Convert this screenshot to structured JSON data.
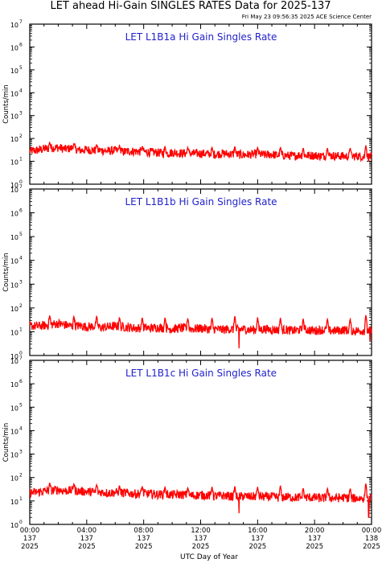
{
  "header": {
    "title": "LET ahead Hi-Gain SINGLES RATES Data for 2025-137",
    "timestamp": "Fri May 23 09:56:35 2025 ACE Science Center"
  },
  "colors": {
    "series": "#ff0000",
    "panel_title": "#2222cc",
    "frame": "#000000"
  },
  "chart_data": [
    {
      "type": "line",
      "title": "LET L1B1a Hi Gain Singles Rate",
      "ylabel": "Counts/min",
      "yscale": "log",
      "ylim": [
        1,
        10000000
      ],
      "y_ticks": [
        "10",
        "10",
        "10",
        "10",
        "10",
        "10",
        "10",
        "10"
      ],
      "y_tick_exponents": [
        "0",
        "1",
        "2",
        "3",
        "4",
        "5",
        "6",
        "7"
      ],
      "xlim": [
        0,
        24
      ],
      "x_unit": "hours UTC, day 137 of 2025",
      "series": [
        {
          "color": "#ff0000",
          "x": [
            0,
            0.5,
            1,
            1.5,
            2,
            2.5,
            3,
            3.5,
            4,
            4.5,
            5,
            5.5,
            6,
            6.5,
            7,
            7.5,
            8,
            8.5,
            9,
            9.5,
            10,
            10.5,
            11,
            11.5,
            12,
            12.5,
            13,
            13.5,
            14,
            14.5,
            15,
            15.5,
            16,
            16.5,
            17,
            17.5,
            18,
            18.5,
            19,
            19.5,
            20,
            20.5,
            21,
            21.5,
            22,
            22.5,
            23,
            23.5,
            24
          ],
          "y": [
            28,
            30,
            35,
            38,
            40,
            34,
            38,
            30,
            32,
            30,
            30,
            28,
            30,
            26,
            28,
            27,
            26,
            25,
            24,
            22,
            24,
            23,
            22,
            22,
            22,
            21,
            20,
            22,
            21,
            20,
            19,
            20,
            21,
            19,
            20,
            18,
            18,
            17,
            19,
            18,
            18,
            17,
            18,
            17,
            17,
            16,
            17,
            16,
            16
          ]
        }
      ],
      "spikes": [
        {
          "x": 1.4,
          "y": 70
        },
        {
          "x": 3.1,
          "y": 60
        },
        {
          "x": 4.7,
          "y": 55
        },
        {
          "x": 6.3,
          "y": 50
        },
        {
          "x": 7.9,
          "y": 45
        },
        {
          "x": 9.5,
          "y": 45
        },
        {
          "x": 11.1,
          "y": 42
        },
        {
          "x": 12.8,
          "y": 40
        },
        {
          "x": 14.4,
          "y": 45
        },
        {
          "x": 16.0,
          "y": 40
        },
        {
          "x": 17.6,
          "y": 42
        },
        {
          "x": 19.2,
          "y": 38
        },
        {
          "x": 20.9,
          "y": 40
        },
        {
          "x": 22.5,
          "y": 40
        },
        {
          "x": 23.6,
          "y": 50
        }
      ]
    },
    {
      "type": "line",
      "title": "LET L1B1b Hi Gain Singles Rate",
      "ylabel": "Counts/min",
      "yscale": "log",
      "ylim": [
        1,
        10000000
      ],
      "y_ticks": [
        "10",
        "10",
        "10",
        "10",
        "10",
        "10",
        "10",
        "10"
      ],
      "y_tick_exponents": [
        "0",
        "1",
        "2",
        "3",
        "4",
        "5",
        "6",
        "7"
      ],
      "xlim": [
        0,
        24
      ],
      "x_unit": "hours UTC, day 137 of 2025",
      "series": [
        {
          "color": "#ff0000",
          "x": [
            0,
            0.5,
            1,
            1.5,
            2,
            2.5,
            3,
            3.5,
            4,
            4.5,
            5,
            5.5,
            6,
            6.5,
            7,
            7.5,
            8,
            8.5,
            9,
            9.5,
            10,
            10.5,
            11,
            11.5,
            12,
            12.5,
            13,
            13.5,
            14,
            14.5,
            15,
            15.5,
            16,
            16.5,
            17,
            17.5,
            18,
            18.5,
            19,
            19.5,
            20,
            20.5,
            21,
            21.5,
            22,
            22.5,
            23,
            23.5,
            24
          ],
          "y": [
            18,
            17,
            18,
            20,
            22,
            19,
            17,
            18,
            16,
            17,
            15,
            16,
            17,
            16,
            15,
            14,
            15,
            14,
            15,
            14,
            13,
            14,
            14,
            13,
            14,
            13,
            13,
            12,
            13,
            12,
            13,
            12,
            12,
            13,
            12,
            12,
            12,
            11,
            12,
            12,
            11,
            12,
            11,
            11,
            12,
            11,
            11,
            11,
            11
          ]
        }
      ],
      "spikes": [
        {
          "x": 1.4,
          "y": 50
        },
        {
          "x": 3.1,
          "y": 45
        },
        {
          "x": 4.7,
          "y": 45
        },
        {
          "x": 6.3,
          "y": 40
        },
        {
          "x": 7.9,
          "y": 40
        },
        {
          "x": 9.5,
          "y": 40
        },
        {
          "x": 11.1,
          "y": 38
        },
        {
          "x": 12.8,
          "y": 38
        },
        {
          "x": 14.4,
          "y": 45
        },
        {
          "x": 16.0,
          "y": 40
        },
        {
          "x": 17.6,
          "y": 38
        },
        {
          "x": 19.2,
          "y": 35
        },
        {
          "x": 20.9,
          "y": 35
        },
        {
          "x": 22.5,
          "y": 35
        },
        {
          "x": 23.6,
          "y": 50
        }
      ],
      "dips": [
        {
          "x": 14.7,
          "y": 2
        },
        {
          "x": 23.9,
          "y": 4
        }
      ]
    },
    {
      "type": "line",
      "title": "LET L1B1c Hi Gain Singles Rate",
      "ylabel": "Counts/min",
      "yscale": "log",
      "ylim": [
        1,
        10000000
      ],
      "y_ticks": [
        "10",
        "10",
        "10",
        "10",
        "10",
        "10",
        "10",
        "10"
      ],
      "y_tick_exponents": [
        "0",
        "1",
        "2",
        "3",
        "4",
        "5",
        "6",
        "7"
      ],
      "xlim": [
        0,
        24
      ],
      "x_unit": "hours UTC, day 137 of 2025",
      "series": [
        {
          "color": "#ff0000",
          "x": [
            0,
            0.5,
            1,
            1.5,
            2,
            2.5,
            3,
            3.5,
            4,
            4.5,
            5,
            5.5,
            6,
            6.5,
            7,
            7.5,
            8,
            8.5,
            9,
            9.5,
            10,
            10.5,
            11,
            11.5,
            12,
            12.5,
            13,
            13.5,
            14,
            14.5,
            15,
            15.5,
            16,
            16.5,
            17,
            17.5,
            18,
            18.5,
            19,
            19.5,
            20,
            20.5,
            21,
            21.5,
            22,
            22.5,
            23,
            23.5,
            24
          ],
          "y": [
            22,
            24,
            26,
            28,
            30,
            27,
            28,
            26,
            25,
            24,
            24,
            22,
            23,
            22,
            21,
            20,
            21,
            20,
            19,
            19,
            18,
            19,
            18,
            17,
            18,
            17,
            16,
            17,
            16,
            15,
            16,
            15,
            16,
            15,
            15,
            14,
            15,
            14,
            14,
            14,
            14,
            13,
            14,
            13,
            14,
            13,
            13,
            13,
            12
          ]
        }
      ],
      "spikes": [
        {
          "x": 1.4,
          "y": 60
        },
        {
          "x": 3.1,
          "y": 55
        },
        {
          "x": 4.7,
          "y": 50
        },
        {
          "x": 6.3,
          "y": 45
        },
        {
          "x": 7.9,
          "y": 42
        },
        {
          "x": 9.5,
          "y": 40
        },
        {
          "x": 11.1,
          "y": 38
        },
        {
          "x": 12.8,
          "y": 40
        },
        {
          "x": 14.4,
          "y": 42
        },
        {
          "x": 16.0,
          "y": 40
        },
        {
          "x": 17.6,
          "y": 45
        },
        {
          "x": 19.2,
          "y": 35
        },
        {
          "x": 20.9,
          "y": 35
        },
        {
          "x": 22.5,
          "y": 35
        },
        {
          "x": 23.6,
          "y": 55
        }
      ],
      "dips": [
        {
          "x": 14.7,
          "y": 3
        },
        {
          "x": 23.8,
          "y": 2
        }
      ]
    }
  ],
  "x_axis": {
    "label": "UTC Day of Year",
    "ticks": [
      {
        "time": "00:00",
        "day": "137",
        "year": "2025",
        "hour": 0
      },
      {
        "time": "04:00",
        "day": "137",
        "year": "2025",
        "hour": 4
      },
      {
        "time": "08:00",
        "day": "137",
        "year": "2025",
        "hour": 8
      },
      {
        "time": "12:00",
        "day": "137",
        "year": "2025",
        "hour": 12
      },
      {
        "time": "16:00",
        "day": "137",
        "year": "2025",
        "hour": 16
      },
      {
        "time": "20:00",
        "day": "137",
        "year": "2025",
        "hour": 20
      },
      {
        "time": "00:00",
        "day": "138",
        "year": "2025",
        "hour": 24
      }
    ]
  }
}
